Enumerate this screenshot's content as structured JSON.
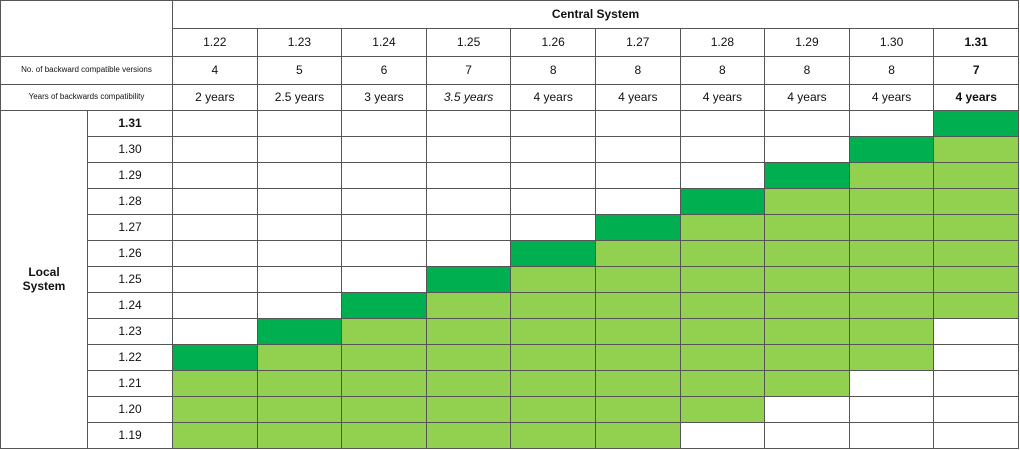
{
  "central": {
    "title": "Central System",
    "versions": [
      "1.22",
      "1.23",
      "1.24",
      "1.25",
      "1.26",
      "1.27",
      "1.28",
      "1.29",
      "1.30",
      "1.31"
    ]
  },
  "compatible_versions": {
    "label": "No. of backward compatible versions",
    "values": [
      4,
      5,
      6,
      7,
      8,
      8,
      8,
      8,
      8,
      7
    ]
  },
  "compatibility_years": {
    "label": "Years of backwards compatibility",
    "values": [
      "2 years",
      "2.5 years",
      "3 years",
      "3.5 years",
      "4 years",
      "4 years",
      "4 years",
      "4 years",
      "4 years",
      "4 years"
    ]
  },
  "local": {
    "title": "Local System",
    "versions": [
      "1.31",
      "1.30",
      "1.29",
      "1.28",
      "1.27",
      "1.26",
      "1.25",
      "1.24",
      "1.23",
      "1.22",
      "1.21",
      "1.20",
      "1.19"
    ]
  }
}
